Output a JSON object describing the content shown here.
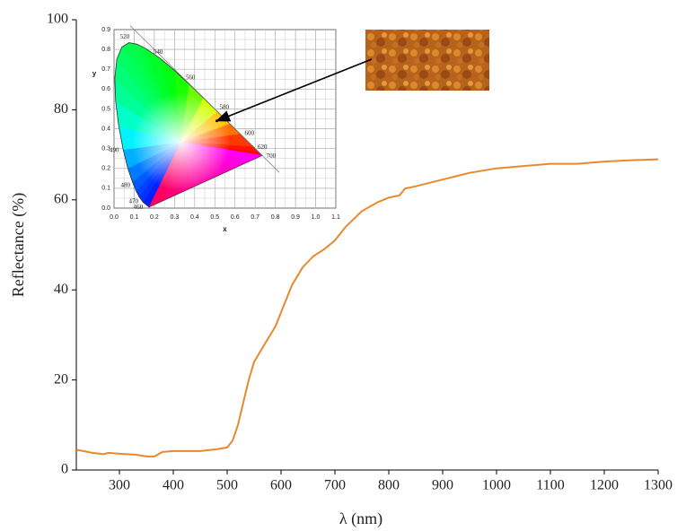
{
  "chart_data": [
    {
      "type": "line",
      "x_label": "λ (nm)",
      "y_label": "Reflectance (%)",
      "x": [
        220,
        250,
        270,
        280,
        300,
        330,
        350,
        365,
        380,
        400,
        450,
        480,
        500,
        510,
        520,
        530,
        540,
        550,
        570,
        590,
        600,
        620,
        640,
        660,
        680,
        700,
        720,
        750,
        780,
        800,
        820,
        830,
        850,
        900,
        950,
        1000,
        1050,
        1100,
        1150,
        1200,
        1250,
        1300
      ],
      "values": [
        4.5,
        3.8,
        3.5,
        3.8,
        3.6,
        3.4,
        3.0,
        3.0,
        4.0,
        4.2,
        4.2,
        4.6,
        5.0,
        6.5,
        10,
        15,
        20,
        24,
        28,
        32,
        35,
        41,
        45,
        47.5,
        49,
        51,
        54,
        57.5,
        59.5,
        60.5,
        61,
        62.5,
        63,
        64.5,
        66,
        67,
        67.5,
        68,
        68,
        68.5,
        68.8,
        69
      ],
      "color": "#e8892e",
      "xlim": [
        220,
        1300
      ],
      "xticks": [
        300,
        400,
        500,
        600,
        700,
        800,
        900,
        1000,
        1100,
        1200,
        1300
      ],
      "ylim": [
        0,
        100
      ],
      "yticks": [
        0,
        20,
        40,
        60,
        80,
        100
      ]
    },
    {
      "type": "chromaticity",
      "x_label": "x",
      "y_label": "y",
      "x": [
        0.1741,
        0.144,
        0.1241,
        0.1096,
        0.0913,
        0.0687,
        0.0454,
        0.0235,
        0.0082,
        0.0039,
        0.0139,
        0.0389,
        0.0743,
        0.1142,
        0.1547,
        0.2296,
        0.3016,
        0.3731,
        0.4441,
        0.5125,
        0.5752,
        0.627,
        0.6915,
        0.719,
        0.7347
      ],
      "y": [
        0.005,
        0.0297,
        0.0578,
        0.0868,
        0.1327,
        0.2007,
        0.295,
        0.4127,
        0.5384,
        0.6548,
        0.7502,
        0.812,
        0.8338,
        0.8262,
        0.8059,
        0.7543,
        0.6923,
        0.6245,
        0.5547,
        0.4866,
        0.4242,
        0.3725,
        0.3083,
        0.2809,
        0.2653
      ],
      "point_labels": [
        null,
        "460",
        "470",
        null,
        "480",
        null,
        "490",
        null,
        null,
        null,
        null,
        null,
        "520",
        null,
        null,
        "540",
        null,
        "560",
        null,
        "580",
        null,
        "600",
        "620",
        null,
        "700"
      ],
      "point": [
        0.51,
        0.44
      ],
      "xlim": [
        0,
        1.1
      ],
      "xticks": [
        {
          "value": 0,
          "label": "0.0"
        },
        {
          "value": 0.1,
          "label": "0.1"
        },
        {
          "value": 0.2,
          "label": "0.2"
        },
        {
          "value": 0.3,
          "label": "0.3"
        },
        {
          "value": 0.4,
          "label": "0.4"
        },
        {
          "value": 0.5,
          "label": "0.5"
        },
        {
          "value": 0.6,
          "label": "0.6"
        },
        {
          "value": 0.7,
          "label": "0.7"
        },
        {
          "value": 0.8,
          "label": "0.8"
        },
        {
          "value": 0.9,
          "label": "0.9"
        },
        {
          "value": 1.0,
          "label": "1.0"
        },
        {
          "value": 1.1,
          "label": "1.1"
        }
      ],
      "ylim": [
        0,
        0.9
      ],
      "yticks": [
        {
          "value": 0,
          "label": "0.0"
        },
        {
          "value": 0.1,
          "label": "0.1"
        },
        {
          "value": 0.2,
          "label": "0.2"
        },
        {
          "value": 0.3,
          "label": "0.3"
        },
        {
          "value": 0.4,
          "label": "0.4"
        },
        {
          "value": 0.5,
          "label": "0.5"
        },
        {
          "value": 0.6,
          "label": "0.6"
        },
        {
          "value": 0.7,
          "label": "0.7"
        },
        {
          "value": 0.8,
          "label": "0.8"
        },
        {
          "value": 0.9,
          "label": "0.9"
        }
      ]
    }
  ]
}
